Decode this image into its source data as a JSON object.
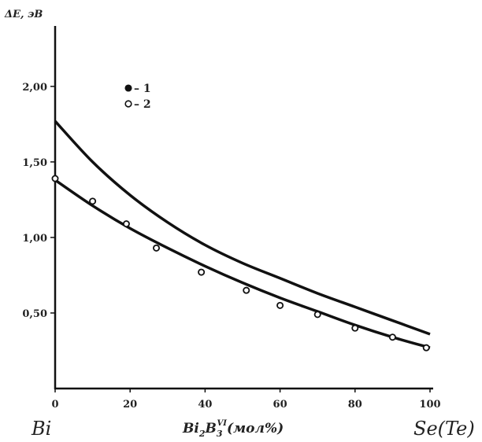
{
  "chart_data": {
    "type": "line",
    "title": "",
    "ylabel": "ΔE, эВ",
    "xlabel_prefix": "Bi",
    "xlabel_sub": "2",
    "xlabel_mid": "B",
    "xlabel_sub2": "3",
    "xlabel_sup": "VI",
    "xlabel_suffix": "(мол%)",
    "left_label": "Bi",
    "right_label": "Se(Te)",
    "xlim": [
      0,
      100
    ],
    "ylim": [
      0,
      2.4
    ],
    "xticks": [
      0,
      20,
      40,
      60,
      80,
      100
    ],
    "xtick_labels": [
      "0",
      "20",
      "40",
      "60",
      "80",
      "100"
    ],
    "yticks": [
      0.5,
      1.0,
      1.5,
      2.0
    ],
    "ytick_labels": [
      "0,50",
      "1,00",
      "1,50",
      "2,00"
    ],
    "grid": false,
    "legend_position": "upper-left",
    "series": [
      {
        "name": "1",
        "marker": "filled",
        "x": [
          0,
          10,
          20,
          30,
          40,
          50,
          60,
          70,
          80,
          90,
          100
        ],
        "values": [
          1.77,
          1.5,
          1.28,
          1.1,
          0.95,
          0.83,
          0.73,
          0.63,
          0.54,
          0.45,
          0.36
        ]
      },
      {
        "name": "2",
        "marker": "open",
        "x": [
          0,
          10,
          19,
          27,
          39,
          51,
          60,
          70,
          80,
          90,
          99
        ],
        "values": [
          1.39,
          1.24,
          1.09,
          0.93,
          0.77,
          0.65,
          0.55,
          0.49,
          0.4,
          0.34,
          0.27
        ]
      }
    ]
  }
}
